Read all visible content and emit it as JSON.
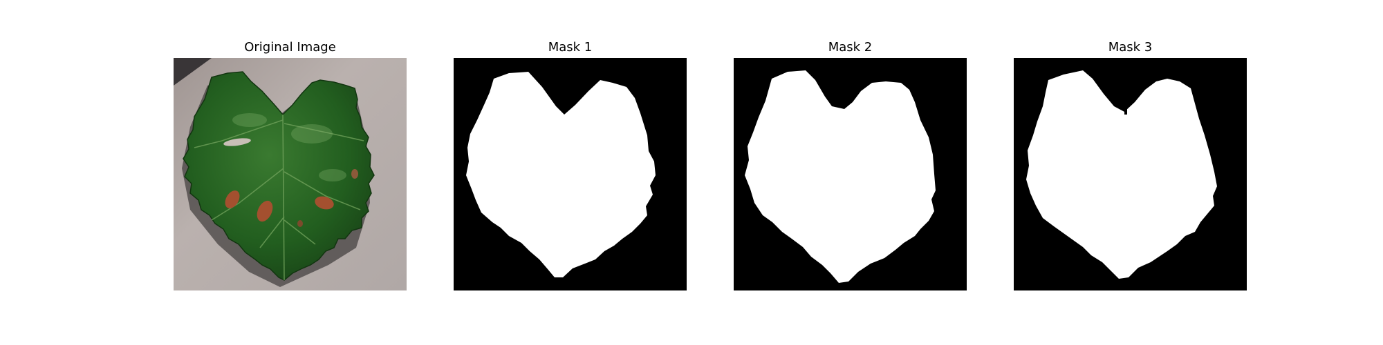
{
  "panels": [
    {
      "title": "Original Image",
      "kind": "photo",
      "subject": "green grape leaf with reddish-brown lesions on a gray-beige background"
    },
    {
      "title": "Mask 1",
      "kind": "mask"
    },
    {
      "title": "Mask 2",
      "kind": "mask"
    },
    {
      "title": "Mask 3",
      "kind": "mask"
    }
  ],
  "colors": {
    "background": "#ffffff",
    "mask_foreground": "#ffffff",
    "mask_background": "#000000",
    "leaf": "#1f5a1c",
    "leaf_highlight": "#3f7d32",
    "lesion": "#a4502f",
    "surface": "#b3aaa7"
  }
}
